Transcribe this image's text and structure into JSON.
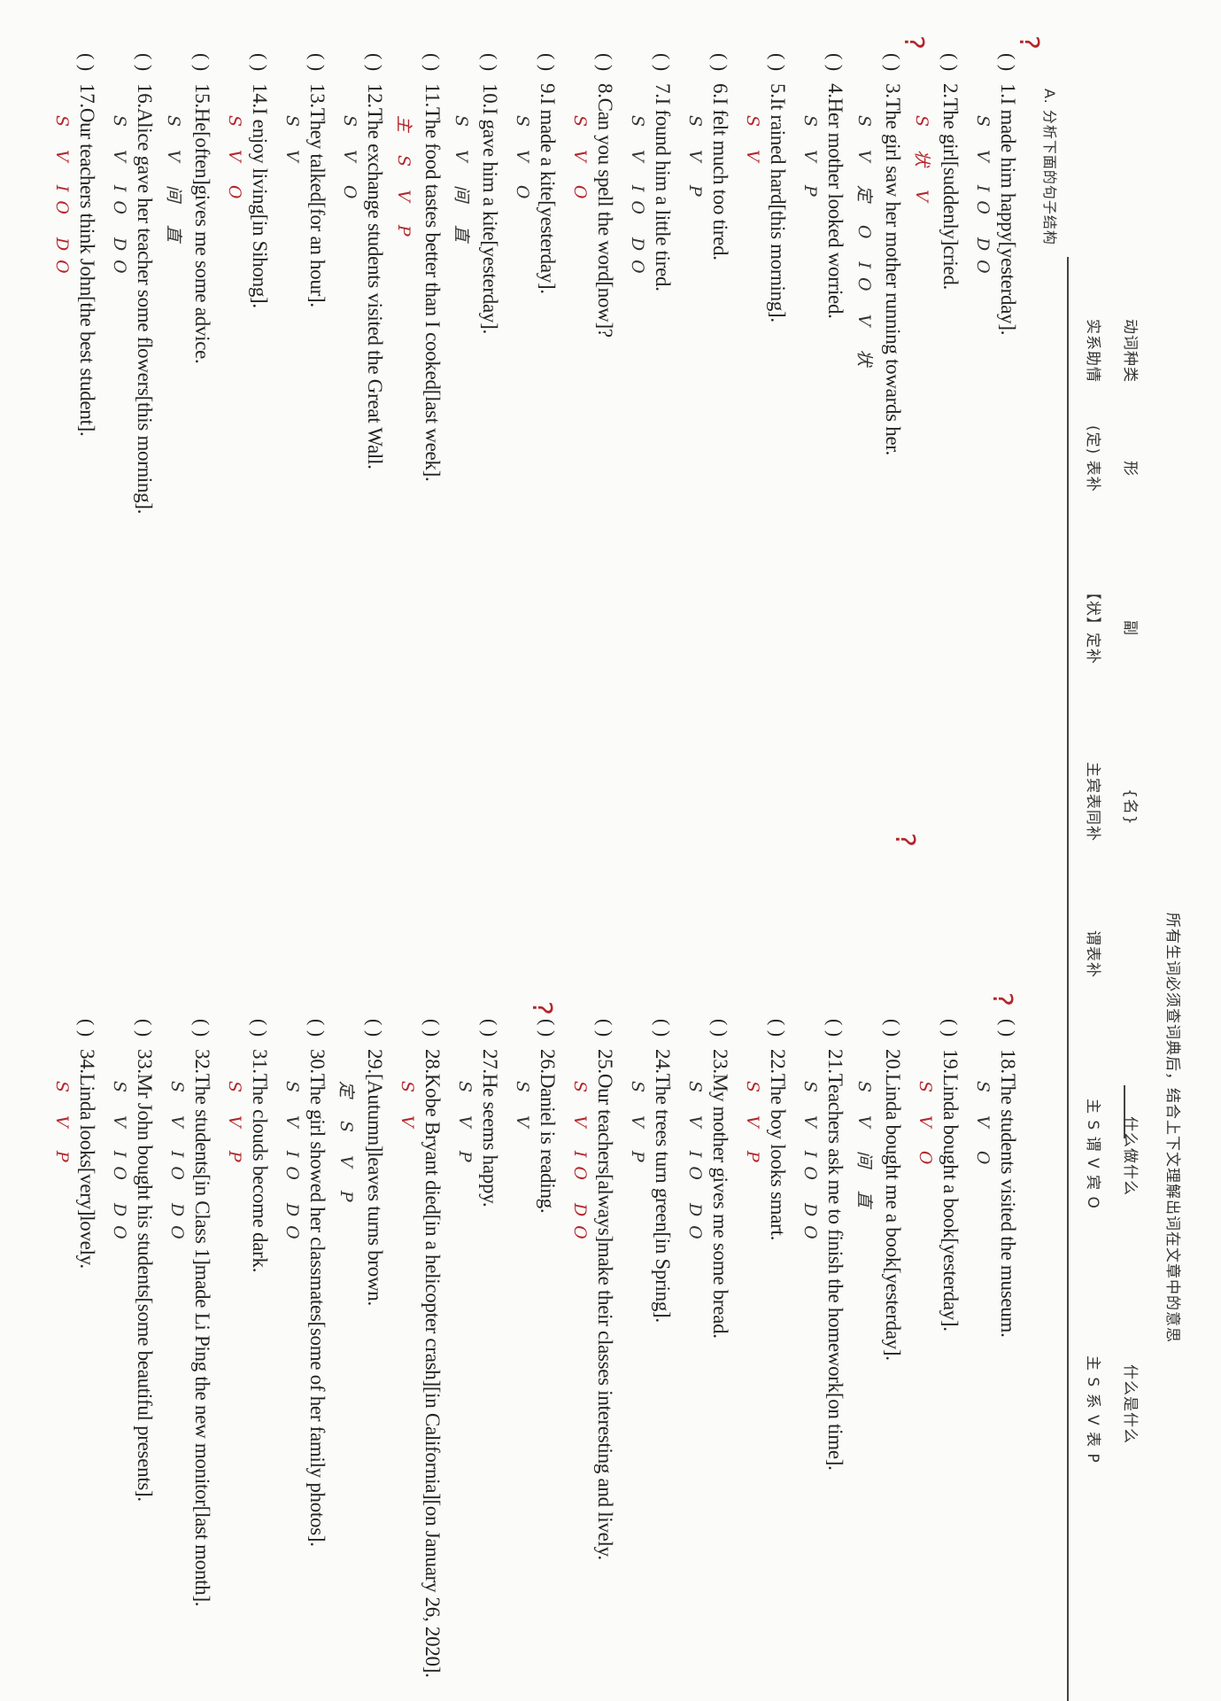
{
  "header": {
    "title": "所有生词必须查词典后，结合上下文理解出词在文章中的意思",
    "row1": [
      "动词种类",
      "形",
      "副",
      "{名}",
      "什么做什么",
      "什么是什么"
    ],
    "row2": [
      "实系助情",
      "(定) 表补",
      "【状】定补",
      "主宾表同补",
      "谓表补",
      "主 S 谓 V 宾 O",
      "主 S 系 V 表 P"
    ],
    "section": "A. 分析下面的句子结构"
  },
  "paren": "(   )",
  "left_items": [
    {
      "text": "1.I made him happy[yesterday].",
      "anno": "S V IO DO"
    },
    {
      "text": "2.The girl[suddenly]cried.",
      "anno": "S 状 V"
    },
    {
      "text": "3.The girl saw her mother running towards her.",
      "anno": "S V 定 O IO V 状"
    },
    {
      "text": "4.Her mother looked worried.",
      "anno": "S V P"
    },
    {
      "text": "5.It rained hard[this morning].",
      "anno": "S V"
    },
    {
      "text": "6.I felt much too tired.",
      "anno": "S V P"
    },
    {
      "text": "7.I found him a little tired.",
      "anno": "S V IO DO"
    },
    {
      "text": "8.Can you spell the word[now]?",
      "anno": "S V O"
    },
    {
      "text": "9.I made a kite[yesterday].",
      "anno": "S V O"
    },
    {
      "text": "10.I gave him a kite[yesterday].",
      "anno": "S V 间 直"
    },
    {
      "text": "11.The food tastes better than I cooked[last week].",
      "anno": "主 S V P"
    },
    {
      "text": "12.The exchange students visited the Great Wall.",
      "anno": "S V O"
    },
    {
      "text": "13.They talked[for an hour].",
      "anno": "S V"
    },
    {
      "text": "14.I enjoy living[in Sihong].",
      "anno": "S V O"
    },
    {
      "text": "15.He[often]gives me some advice.",
      "anno": "S V 间 直"
    },
    {
      "text": "16.Alice gave her teacher some flowers[this morning].",
      "anno": "S V IO DO"
    },
    {
      "text": "17.Our teachers think John[the best student].",
      "anno": "S V IO DO"
    }
  ],
  "right_items": [
    {
      "text": "18.The students visited the museum.",
      "anno": "S V O"
    },
    {
      "text": "19.Linda bought a book[yesterday].",
      "anno": "S V O"
    },
    {
      "text": "20.Linda bought me a book[yesterday].",
      "anno": "S V 间 直"
    },
    {
      "text": "21.Teachers ask me to finish the homework[on time].",
      "anno": "S V IO DO"
    },
    {
      "text": "22.The boy looks smart.",
      "anno": "S V P"
    },
    {
      "text": "23.My mother gives me some bread.",
      "anno": "S V IO DO"
    },
    {
      "text": "24.The trees turn green[in Spring].",
      "anno": "S V P"
    },
    {
      "text": "25.Our teachers[always]make their classes interesting and lively.",
      "anno": "S V IO DO"
    },
    {
      "text": "26.Daniel is reading.",
      "anno": "S V"
    },
    {
      "text": "27.He seems happy.",
      "anno": "S V P"
    },
    {
      "text": "28.Kobe Bryant died[in a helicopter crash][in California][on January 26, 2020].",
      "anno": "S V"
    },
    {
      "text": "29.[Autumn]leaves turns brown.",
      "anno": "定 S V P"
    },
    {
      "text": "30.The girl showed her classmates[some of her family photos].",
      "anno": "S V IO DO"
    },
    {
      "text": "31.The clouds become dark.",
      "anno": "S V P"
    },
    {
      "text": "32.The students[in Class 1]made Li Ping the new monitor[last month].",
      "anno": "S V IO DO"
    },
    {
      "text": "33.Mr John bought his students[some beautiful presents].",
      "anno": "S V IO DO"
    },
    {
      "text": "34.Linda looks[very]lovely.",
      "anno": "S V P"
    }
  ],
  "colors": {
    "ink": "#222222",
    "red_pen": "#b3262a"
  }
}
